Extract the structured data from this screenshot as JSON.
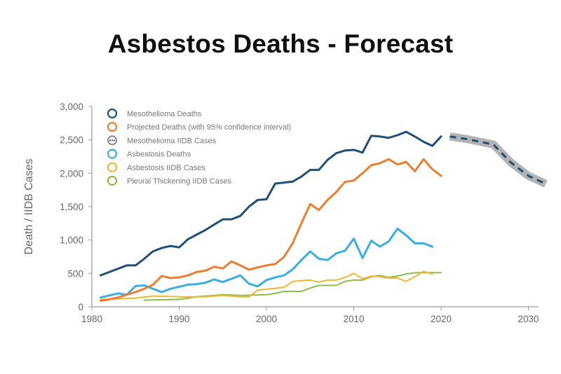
{
  "title": "Asbestos Deaths - Forecast",
  "chart_data": {
    "type": "line",
    "title": "Asbestos Deaths - Forecast",
    "xlabel": "",
    "ylabel": "Death / IIDB Cases",
    "xlim": [
      1980,
      2032
    ],
    "ylim": [
      0,
      3000
    ],
    "x_ticks": [
      1980,
      1990,
      2000,
      2010,
      2020,
      2030
    ],
    "x_tick_labels": [
      "1980",
      "1990",
      "2000",
      "2010",
      "2020",
      "2030"
    ],
    "y_ticks": [
      0,
      500,
      1000,
      1500,
      2000,
      2500,
      3000
    ],
    "y_tick_labels": [
      "0",
      "500",
      "1,000",
      "1,500",
      "2,000",
      "2,500",
      "3,000"
    ],
    "grid": false,
    "legend_position": "upper left",
    "legend": [
      {
        "label": "Mesothelioma Deaths",
        "color": "#1f4e79",
        "marker": "circle"
      },
      {
        "label": "Projected Deaths (with 95% confidence interval)",
        "color": "#ed7d31",
        "marker": "circle"
      },
      {
        "label": "Mesothelioma IIDB Cases",
        "color": "#8a8a8a",
        "marker": "dotted-circle"
      },
      {
        "label": "Asbestosis Deaths",
        "color": "#3aaee0",
        "marker": "circle"
      },
      {
        "label": "Asbestosis IIDB Cases",
        "color": "#f2b630",
        "marker": "circle"
      },
      {
        "label": "Pleural Thickening IIDB Cases",
        "color": "#8cbd45",
        "marker": "circle"
      }
    ],
    "series": [
      {
        "name": "Mesothelioma Deaths",
        "color": "#1f4e79",
        "x": [
          1981,
          1982,
          1983,
          1984,
          1985,
          1986,
          1987,
          1988,
          1989,
          1990,
          1991,
          1992,
          1993,
          1994,
          1995,
          1996,
          1997,
          1998,
          1999,
          2000,
          2001,
          2002,
          2003,
          2004,
          2005,
          2006,
          2007,
          2008,
          2009,
          2010,
          2011,
          2012,
          2013,
          2014,
          2015,
          2016,
          2017,
          2018,
          2019,
          2020
        ],
        "y": [
          470,
          520,
          570,
          620,
          620,
          720,
          830,
          880,
          910,
          890,
          1010,
          1080,
          1150,
          1230,
          1310,
          1310,
          1360,
          1500,
          1600,
          1610,
          1845,
          1860,
          1875,
          1950,
          2050,
          2050,
          2200,
          2300,
          2340,
          2350,
          2310,
          2560,
          2550,
          2530,
          2570,
          2620,
          2550,
          2470,
          2410,
          2550
        ]
      },
      {
        "name": "Mesothelioma IIDB Cases",
        "color": "#ed7d31",
        "x": [
          1981,
          1982,
          1983,
          1984,
          1985,
          1986,
          1987,
          1988,
          1989,
          1990,
          1991,
          1992,
          1993,
          1994,
          1995,
          1996,
          1997,
          1998,
          1999,
          2000,
          2001,
          2002,
          2003,
          2004,
          2005,
          2006,
          2007,
          2008,
          2009,
          2010,
          2011,
          2012,
          2013,
          2014,
          2015,
          2016,
          2017,
          2018,
          2019,
          2020
        ],
        "y": [
          90,
          110,
          140,
          180,
          220,
          270,
          330,
          460,
          430,
          440,
          470,
          520,
          540,
          600,
          575,
          680,
          620,
          555,
          590,
          620,
          640,
          745,
          950,
          1250,
          1540,
          1450,
          1600,
          1720,
          1870,
          1890,
          2000,
          2120,
          2150,
          2210,
          2130,
          2170,
          2030,
          2210,
          2060,
          1960
        ]
      },
      {
        "name": "Asbestosis Deaths",
        "color": "#3aaee0",
        "x": [
          1981,
          1982,
          1983,
          1984,
          1985,
          1986,
          1987,
          1988,
          1989,
          1990,
          1991,
          1992,
          1993,
          1994,
          1995,
          1996,
          1997,
          1998,
          1999,
          2000,
          2001,
          2002,
          2003,
          2004,
          2005,
          2006,
          2007,
          2008,
          2009,
          2010,
          2011,
          2012,
          2013,
          2014,
          2015,
          2016,
          2017,
          2018,
          2019
        ],
        "y": [
          140,
          170,
          200,
          180,
          310,
          320,
          270,
          220,
          270,
          300,
          330,
          340,
          360,
          410,
          370,
          420,
          470,
          345,
          305,
          400,
          440,
          470,
          560,
          700,
          830,
          720,
          700,
          800,
          840,
          1020,
          730,
          990,
          900,
          980,
          1170,
          1070,
          950,
          950,
          900
        ]
      },
      {
        "name": "Asbestosis IIDB Cases",
        "color": "#f2b630",
        "x": [
          1981,
          1983,
          1985,
          1987,
          1990,
          1993,
          1995,
          1997,
          1998,
          1999,
          2002,
          2003,
          2005,
          2006,
          2007,
          2008,
          2009,
          2010,
          2011,
          2012,
          2013,
          2014,
          2015,
          2016,
          2017,
          2018,
          2019
        ],
        "y": [
          110,
          120,
          130,
          160,
          150,
          150,
          170,
          150,
          150,
          250,
          290,
          380,
          400,
          370,
          400,
          400,
          440,
          500,
          420,
          460,
          450,
          430,
          430,
          380,
          450,
          530,
          490
        ]
      },
      {
        "name": "Pleural Thickening IIDB Cases",
        "color": "#8cbd45",
        "x": [
          1986,
          1988,
          1990,
          1992,
          1995,
          1997,
          2000,
          2001,
          2002,
          2004,
          2005,
          2006,
          2008,
          2009,
          2010,
          2011,
          2012,
          2013,
          2014,
          2015,
          2016,
          2017,
          2018,
          2019,
          2020
        ],
        "y": [
          100,
          105,
          110,
          150,
          180,
          170,
          180,
          200,
          230,
          230,
          280,
          320,
          320,
          380,
          400,
          400,
          450,
          470,
          440,
          460,
          490,
          510,
          510,
          510,
          510
        ]
      }
    ],
    "forecast": {
      "name": "Projected Deaths (with 95% confidence interval)",
      "line_color": "#1f4e79",
      "band_color": "#b3b3b3",
      "x": [
        2021,
        2023,
        2026,
        2028,
        2030,
        2032
      ],
      "y": [
        2550,
        2510,
        2430,
        2160,
        1960,
        1840
      ],
      "band_halfwidth": 60
    }
  }
}
